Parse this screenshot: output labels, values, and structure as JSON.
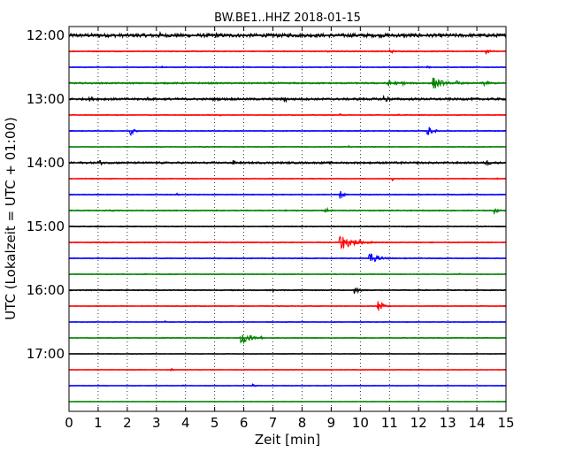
{
  "chart_data": {
    "type": "line",
    "title": "BW.BE1..HHZ 2018-01-15",
    "xlabel": "Zeit  [min]",
    "ylabel": "UTC (Lokalzeit = UTC + 01:00)",
    "xlim": [
      0,
      15
    ],
    "x_ticks": [
      "0",
      "1",
      "2",
      "3",
      "4",
      "5",
      "6",
      "7",
      "8",
      "9",
      "10",
      "11",
      "12",
      "13",
      "14",
      "15"
    ],
    "y_ticks": [
      {
        "label": "12:00",
        "trace": 0
      },
      {
        "label": "13:00",
        "trace": 4
      },
      {
        "label": "14:00",
        "trace": 8
      },
      {
        "label": "15:00",
        "trace": 12
      },
      {
        "label": "16:00",
        "trace": 16
      },
      {
        "label": "17:00",
        "trace": 20
      }
    ],
    "grid": {
      "vertical": true,
      "style": "dotted"
    },
    "trace_colors": [
      "#000000",
      "#ff0000",
      "#0000ff",
      "#008000"
    ],
    "traces": [
      {
        "color": "#000000",
        "noise": 0.22,
        "events": [
          [
            0.6,
            0.35,
            0.15
          ],
          [
            1.6,
            0.25,
            0.1
          ],
          [
            3.1,
            0.45,
            0.15
          ],
          [
            4.1,
            0.3,
            0.1
          ],
          [
            5.0,
            0.45,
            0.2
          ],
          [
            5.6,
            0.3,
            0.1
          ],
          [
            6.5,
            0.3,
            0.1
          ],
          [
            7.6,
            0.3,
            0.1
          ],
          [
            8.4,
            0.3,
            0.15
          ],
          [
            10.9,
            0.2,
            0.1
          ],
          [
            12.5,
            0.2,
            0.1
          ],
          [
            14.9,
            0.25,
            0.05
          ]
        ]
      },
      {
        "color": "#ff0000",
        "noise": 0.07,
        "events": [
          [
            11.0,
            0.35,
            0.15
          ],
          [
            12.1,
            0.2,
            0.1
          ],
          [
            14.3,
            0.4,
            0.2
          ],
          [
            8.9,
            0.2,
            0.05
          ]
        ]
      },
      {
        "color": "#0000ff",
        "noise": 0.05,
        "events": [
          [
            3.2,
            0.2,
            0.05
          ],
          [
            12.3,
            0.3,
            0.1
          ],
          [
            13.5,
            0.2,
            0.05
          ]
        ]
      },
      {
        "color": "#008000",
        "noise": 0.1,
        "events": [
          [
            10.9,
            0.5,
            0.3
          ],
          [
            11.4,
            0.35,
            0.2
          ],
          [
            12.5,
            0.9,
            0.3
          ],
          [
            13.3,
            0.35,
            0.2
          ],
          [
            14.2,
            0.4,
            0.3
          ],
          [
            6.0,
            0.2,
            0.05
          ]
        ]
      },
      {
        "color": "#000000",
        "noise": 0.14,
        "events": [
          [
            0.7,
            0.3,
            0.2
          ],
          [
            2.7,
            0.3,
            0.1
          ],
          [
            7.4,
            0.6,
            0.1
          ],
          [
            10.8,
            0.6,
            0.2
          ],
          [
            5.5,
            0.2,
            0.1
          ]
        ]
      },
      {
        "color": "#ff0000",
        "noise": 0.05,
        "events": [
          [
            9.3,
            0.25,
            0.05
          ],
          [
            11.3,
            0.2,
            0.05
          ],
          [
            5.2,
            0.15,
            0.05
          ]
        ]
      },
      {
        "color": "#0000ff",
        "noise": 0.05,
        "events": [
          [
            2.1,
            0.6,
            0.15
          ],
          [
            12.3,
            0.7,
            0.2
          ]
        ]
      },
      {
        "color": "#008000",
        "noise": 0.05,
        "events": [
          [
            4.5,
            0.15,
            0.05
          ],
          [
            9.6,
            0.15,
            0.05
          ]
        ]
      },
      {
        "color": "#000000",
        "noise": 0.12,
        "events": [
          [
            1.0,
            0.45,
            0.2
          ],
          [
            5.6,
            0.4,
            0.2
          ],
          [
            14.3,
            0.45,
            0.2
          ],
          [
            7.0,
            0.2,
            0.05
          ],
          [
            11.4,
            0.2,
            0.05
          ]
        ]
      },
      {
        "color": "#ff0000",
        "noise": 0.05,
        "events": [
          [
            6.9,
            0.2,
            0.05
          ],
          [
            11.1,
            0.3,
            0.05
          ],
          [
            14.7,
            0.15,
            0.05
          ]
        ]
      },
      {
        "color": "#0000ff",
        "noise": 0.06,
        "events": [
          [
            3.7,
            0.2,
            0.1
          ],
          [
            9.3,
            0.55,
            0.15
          ],
          [
            11.2,
            0.2,
            0.05
          ],
          [
            13.7,
            0.15,
            0.05
          ]
        ]
      },
      {
        "color": "#008000",
        "noise": 0.07,
        "events": [
          [
            1.4,
            0.4,
            0.1
          ],
          [
            8.8,
            0.35,
            0.2
          ],
          [
            14.6,
            0.45,
            0.15
          ]
        ]
      },
      {
        "color": "#000000",
        "noise": 0.06,
        "events": [
          [
            11.6,
            0.15,
            0.05
          ]
        ]
      },
      {
        "color": "#ff0000",
        "noise": 0.06,
        "events": [
          [
            9.3,
            1.0,
            0.5
          ],
          [
            0.1,
            0.15,
            0.05
          ]
        ]
      },
      {
        "color": "#0000ff",
        "noise": 0.06,
        "events": [
          [
            10.3,
            0.7,
            0.35
          ]
        ]
      },
      {
        "color": "#008000",
        "noise": 0.05,
        "events": [
          [
            2.6,
            0.2,
            0.05
          ],
          [
            13.4,
            0.15,
            0.05
          ]
        ]
      },
      {
        "color": "#000000",
        "noise": 0.07,
        "events": [
          [
            7.0,
            0.25,
            0.05
          ],
          [
            9.8,
            0.6,
            0.15
          ]
        ]
      },
      {
        "color": "#ff0000",
        "noise": 0.05,
        "events": [
          [
            10.6,
            0.75,
            0.2
          ],
          [
            0.2,
            0.15,
            0.05
          ]
        ]
      },
      {
        "color": "#0000ff",
        "noise": 0.04,
        "events": [
          [
            3.3,
            0.15,
            0.05
          ]
        ]
      },
      {
        "color": "#008000",
        "noise": 0.05,
        "events": [
          [
            3.2,
            0.2,
            0.05
          ],
          [
            5.9,
            0.95,
            0.3
          ],
          [
            6.6,
            0.25,
            0.1
          ]
        ]
      },
      {
        "color": "#000000",
        "noise": 0.04,
        "events": []
      },
      {
        "color": "#ff0000",
        "noise": 0.04,
        "events": [
          [
            3.5,
            0.2,
            0.15
          ],
          [
            5.9,
            0.15,
            0.05
          ],
          [
            12.0,
            0.15,
            0.05
          ]
        ]
      },
      {
        "color": "#0000ff",
        "noise": 0.04,
        "events": [
          [
            3.9,
            0.15,
            0.05
          ],
          [
            6.3,
            0.2,
            0.15
          ]
        ]
      },
      {
        "color": "#008000",
        "noise": 0.03,
        "events": []
      }
    ]
  }
}
